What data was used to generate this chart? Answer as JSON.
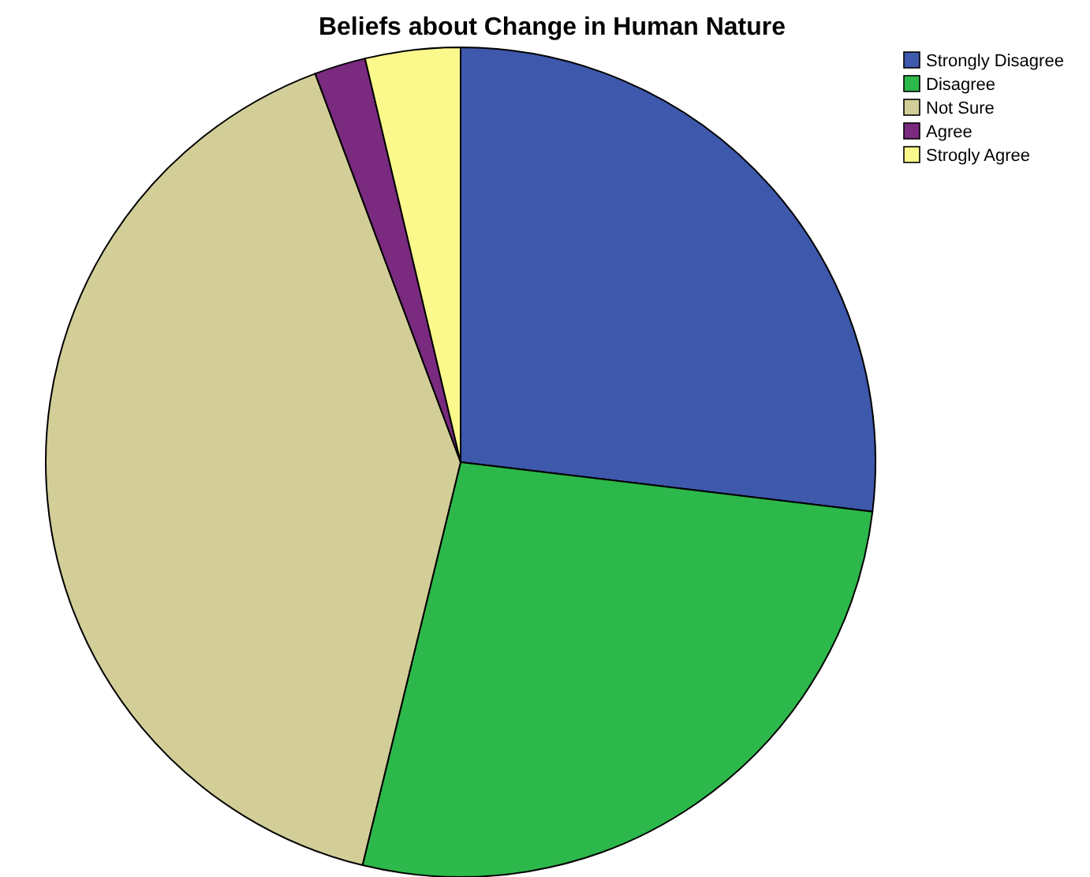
{
  "chart_data": {
    "type": "pie",
    "title": "Beliefs about Change in Human Nature",
    "categories": [
      "Strongly Disagree",
      "Disagree",
      "Not Sure",
      "Agree",
      "Strogly Agree"
    ],
    "values": [
      26.9,
      26.9,
      40.5,
      2.0,
      3.7
    ],
    "colors": [
      "#3e58ac",
      "#2db84b",
      "#d3ce98",
      "#7a2a7f",
      "#fbf98c"
    ],
    "legend": "top right"
  }
}
